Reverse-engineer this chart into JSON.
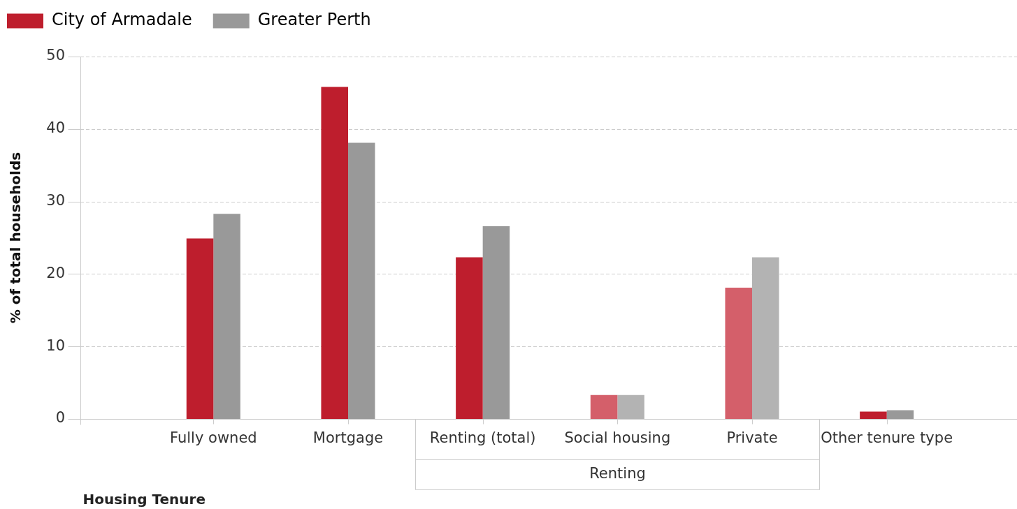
{
  "chart_data": {
    "type": "bar",
    "categories": [
      "Fully owned",
      "Mortgage",
      "Renting (total)",
      "Social housing",
      "Private",
      "Other tenure type"
    ],
    "series": [
      {
        "name": "City of Armadale",
        "color": "#be1e2d",
        "colors": [
          "#be1e2d",
          "#be1e2d",
          "#be1e2d",
          "#d45f6a",
          "#d45f6a",
          "#be1e2d"
        ],
        "values": [
          24.9,
          45.8,
          22.3,
          3.3,
          18.1,
          1.0
        ]
      },
      {
        "name": "Greater Perth",
        "color": "#999999",
        "colors": [
          "#999999",
          "#999999",
          "#999999",
          "#b3b3b3",
          "#b3b3b3",
          "#999999"
        ],
        "values": [
          28.3,
          38.1,
          26.6,
          3.3,
          22.3,
          1.2
        ]
      }
    ],
    "xlabel": "Housing Tenure",
    "ylabel": "% of total households",
    "ylim": [
      0,
      50
    ],
    "yticks": [
      0,
      10,
      20,
      30,
      40,
      50
    ],
    "grid": "y",
    "legend": "top left",
    "annotations": [
      "Renting"
    ]
  }
}
